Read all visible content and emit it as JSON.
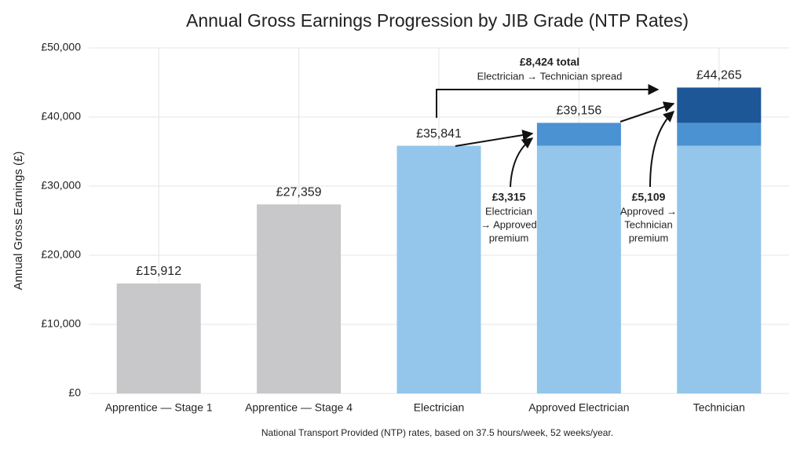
{
  "chart_data": {
    "type": "bar",
    "title": "Annual Gross Earnings Progression by JIB Grade (NTP Rates)",
    "y_label": "Annual Gross Earnings (£)",
    "note": "National Transport Provided (NTP) rates, based on 37.5 hours/week, 52 weeks/year.",
    "categories": [
      "Apprentice — Stage 1",
      "Apprentice — Stage 4",
      "Electrician",
      "Approved Electrician",
      "Technician"
    ],
    "series": [
      {
        "values": [
          15912,
          27359,
          35841,
          35841,
          35841
        ],
        "colors": [
          "#c8c8ca",
          "#c8c8ca",
          "#93c6ea",
          "#93c6ea",
          "#93c6ea"
        ]
      },
      {
        "values": [
          null,
          null,
          null,
          3315,
          3315
        ],
        "color": "#4b92d2"
      },
      {
        "values": [
          null,
          null,
          null,
          null,
          5109
        ],
        "color": "#1d5797"
      }
    ],
    "totals": [
      15912,
      27359,
      35841,
      39156,
      44265
    ],
    "total_labels": [
      "£15,912",
      "£27,359",
      "£35,841",
      "£39,156",
      "£44,265"
    ],
    "annotations": [
      {
        "label": "£8,424 total",
        "lines": [
          "Electrician → Technician spread"
        ]
      },
      {
        "label": "£3,315",
        "lines": [
          "Electrician",
          "→ Approved",
          "premium"
        ]
      },
      {
        "label": "£5,109",
        "lines": [
          "Approved →",
          "Technician",
          "premium"
        ]
      }
    ],
    "ylim": [
      0,
      50000
    ],
    "yticks": [
      {
        "value": 0,
        "label": "£0"
      },
      {
        "value": 10000,
        "label": "£10,000"
      },
      {
        "value": 20000,
        "label": "£20,000"
      },
      {
        "value": 30000,
        "label": "£30,000"
      },
      {
        "value": 40000,
        "label": "£40,000"
      },
      {
        "value": 50000,
        "label": "£50,000"
      }
    ],
    "grid": true
  }
}
